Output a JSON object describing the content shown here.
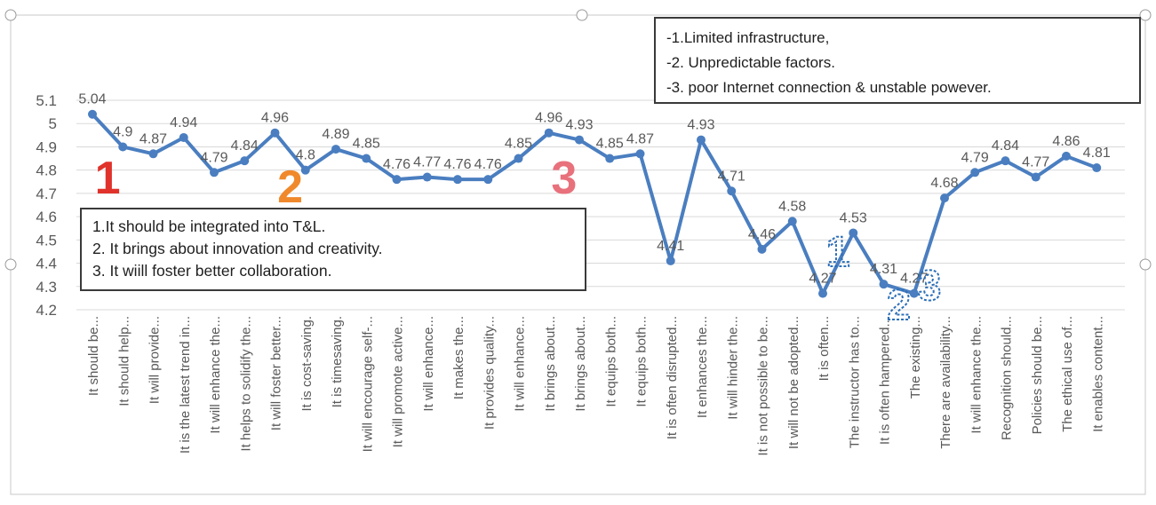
{
  "chart_data": {
    "type": "line",
    "ylim": [
      4.2,
      5.1
    ],
    "yticks": [
      "5.1",
      "5",
      "4.9",
      "4.8",
      "4.7",
      "4.6",
      "4.5",
      "4.4",
      "4.3",
      "4.2"
    ],
    "grid": "horizontal",
    "categories": [
      "It should be...",
      "It should help...",
      "It will provide...",
      "It is the latest trend in...",
      "It will enhance the...",
      "It helps to solidify the...",
      "It will foster better...",
      "It is cost-saving.",
      "It is timesaving.",
      "It will encourage self-...",
      "It will promote active...",
      "It will enhance...",
      "It makes the...",
      "It provides quality...",
      "It will enhance...",
      "It brings about...",
      "It brings about...",
      "It equips both...",
      "It equips both...",
      "It is often disrupted...",
      "It enhances the...",
      "It will hinder the...",
      "It is not possible to be...",
      "It will not be adopted...",
      "It is often...",
      "The instructor has to...",
      "It is often hampered...",
      "The existing...",
      "There are availability...",
      "It will enhance the...",
      "Recognition should...",
      "Policies should be...",
      "The ethical use of...",
      "It enables content..."
    ],
    "series": [
      {
        "values": [
          5.04,
          4.9,
          4.87,
          4.94,
          4.79,
          4.84,
          4.96,
          4.8,
          4.89,
          4.85,
          4.76,
          4.77,
          4.76,
          4.76,
          4.85,
          4.96,
          4.93,
          4.85,
          4.87,
          4.41,
          4.93,
          4.71,
          4.46,
          4.58,
          4.27,
          4.53,
          4.31,
          4.27,
          4.68,
          4.79,
          4.84,
          4.77,
          4.86,
          4.81
        ],
        "labels": [
          "5.04",
          "4.9",
          "4.87",
          "4.94",
          "4.79",
          "4.84",
          "4.96",
          "4.8",
          "4.89",
          "4.85",
          "4.76",
          "4.77",
          "4.76",
          "4.76",
          "4.85",
          "4.96",
          "4.93",
          "4.85",
          "4.87",
          "4.41",
          "4.93",
          "4.71",
          "4.46",
          "4.58",
          "4.27",
          "4.53",
          "4.31",
          "4.27",
          "4.68",
          "4.79",
          "4.84",
          "4.77",
          "4.86",
          "4.81"
        ],
        "color": "#4a7ec0"
      }
    ],
    "markers": [
      {
        "text": "1",
        "after_index": 0,
        "color": "#e0322b"
      },
      {
        "text": "2",
        "after_index": 6,
        "color": "#f0892c"
      },
      {
        "text": "3",
        "after_index": 15,
        "color": "#e8717c"
      },
      {
        "text": "1",
        "after_index": 24,
        "color": "#2c6fb8"
      },
      {
        "text": "2",
        "after_index": 26,
        "color": "#2c6fb8"
      },
      {
        "text": "3",
        "after_index": 27,
        "color": "#2c6fb8"
      }
    ]
  },
  "callouts": {
    "top": [
      "-1.Limited infrastructure,",
      "-2. Unpredictable factors.",
      "-3. poor Internet connection & unstable powever."
    ],
    "left": [
      "1.It should be integrated into T&L.",
      "2. It brings about innovation and creativity.",
      "3. It wiill foster better collaboration."
    ]
  },
  "colors": {
    "line": "#4a7ec0",
    "grid": "#d9d9d9",
    "text": "#595959"
  }
}
